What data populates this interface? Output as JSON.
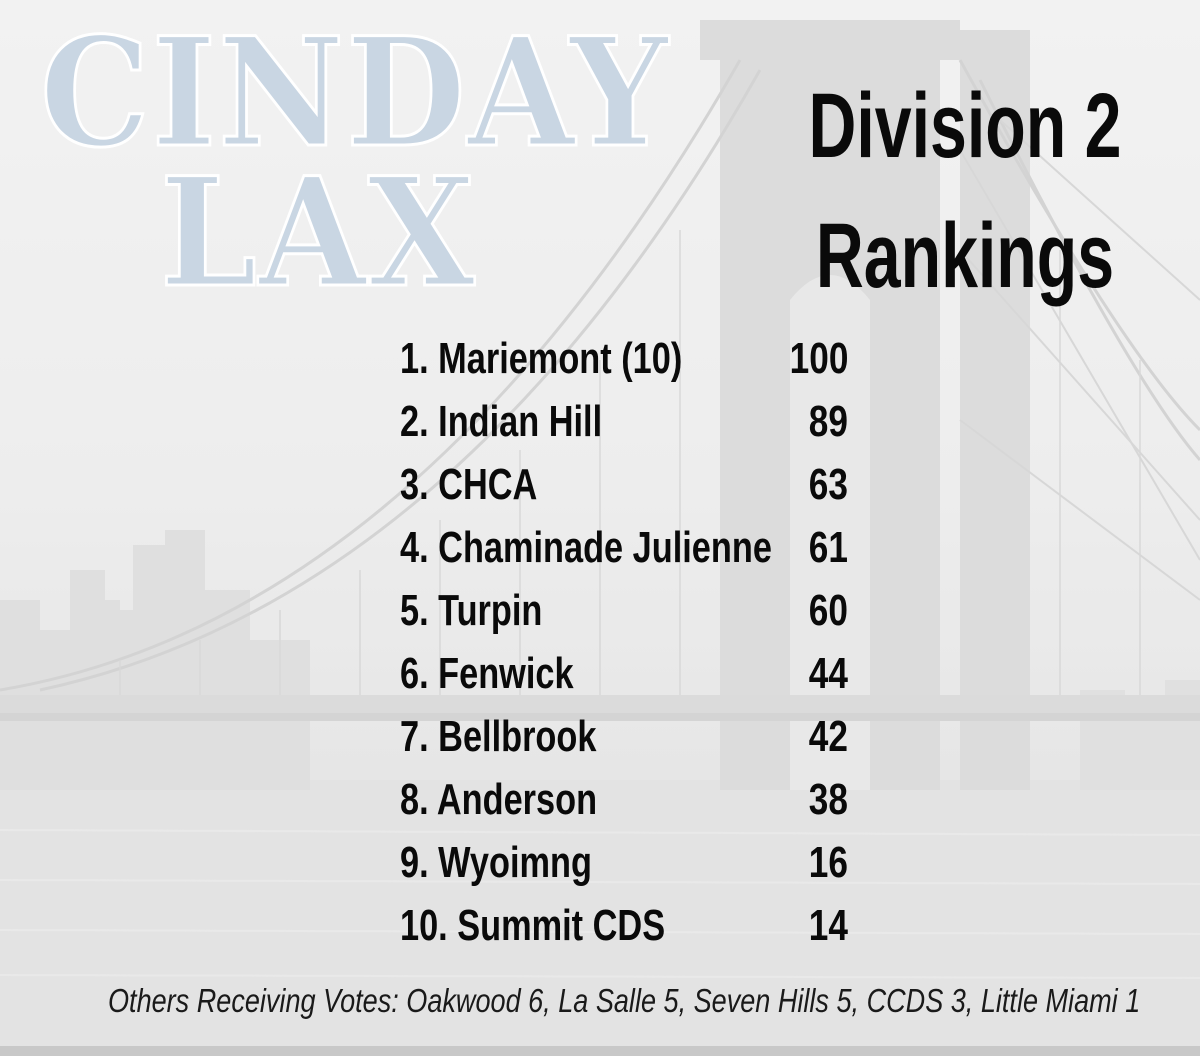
{
  "logo": {
    "line1": "CINDAY",
    "line2": "LAX"
  },
  "heading": {
    "line1": "Division 2",
    "line2": "Rankings"
  },
  "rankings": [
    {
      "team": "1. Mariemont (10)",
      "points": "100"
    },
    {
      "team": "2. Indian Hill",
      "points": "89"
    },
    {
      "team": "3. CHCA",
      "points": "63"
    },
    {
      "team": "4. Chaminade Julienne",
      "points": "61"
    },
    {
      "team": "5. Turpin",
      "points": "60"
    },
    {
      "team": "6. Fenwick",
      "points": "44"
    },
    {
      "team": "7. Bellbrook",
      "points": "42"
    },
    {
      "team": "8. Anderson",
      "points": "38"
    },
    {
      "team": "9. Wyoimng",
      "points": "16"
    },
    {
      "team": "10. Summit CDS",
      "points": "14"
    }
  ],
  "footer": {
    "others": "Others Receiving Votes: Oakwood 6, La Salle 5, Seven Hills 5, CCDS 3, Little Miami 1"
  },
  "colors": {
    "text": "#0a0a0a",
    "logo_fill": "#c9d6e3",
    "logo_outline": "#ffffff",
    "background": "#ececec"
  }
}
